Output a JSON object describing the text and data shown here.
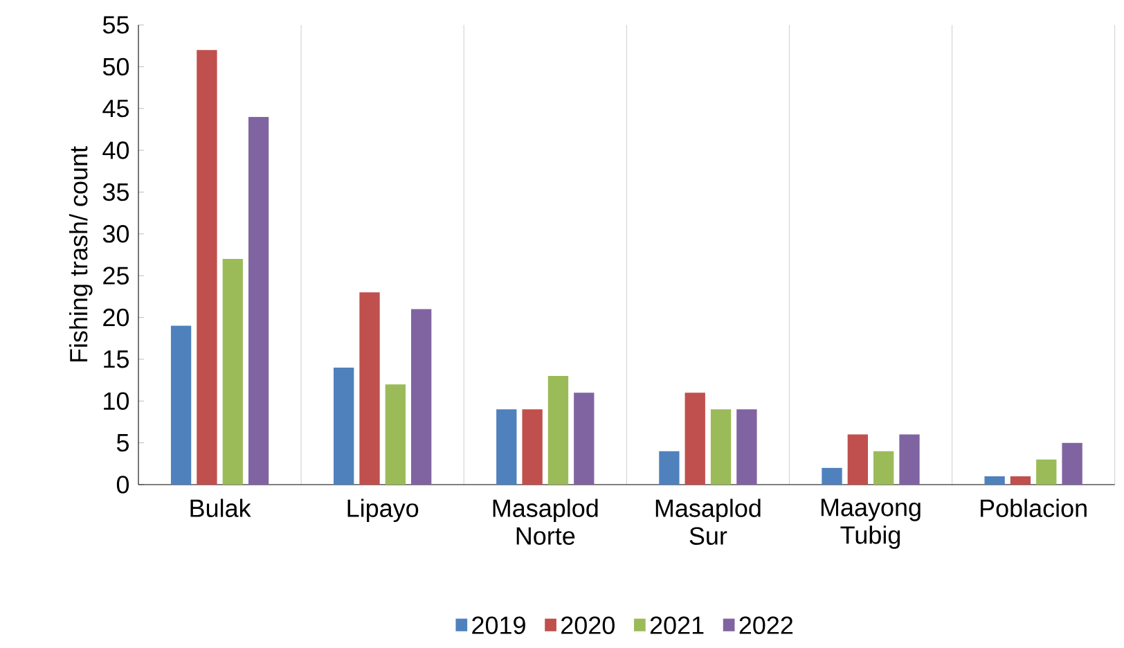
{
  "chart_data": {
    "type": "bar",
    "ylabel": "Fishing trash/ count",
    "categories": [
      "Bulak",
      "Lipayo",
      "Masaplod Norte",
      "Masaplod Sur",
      "Maayong Tubig",
      "Poblacion"
    ],
    "series": [
      {
        "name": "2019",
        "color": "#4f81bd",
        "values": [
          19,
          14,
          9,
          4,
          2,
          1
        ]
      },
      {
        "name": "2020",
        "color": "#c0504d",
        "values": [
          52,
          23,
          9,
          11,
          6,
          1
        ]
      },
      {
        "name": "2021",
        "color": "#9bbb59",
        "values": [
          27,
          12,
          13,
          9,
          4,
          3
        ]
      },
      {
        "name": "2022",
        "color": "#8064a2",
        "values": [
          44,
          21,
          11,
          9,
          6,
          5
        ]
      }
    ],
    "ylim": [
      0,
      55
    ],
    "yticks": [
      0,
      5,
      10,
      15,
      20,
      25,
      30,
      35,
      40,
      45,
      50,
      55
    ],
    "grid": "x",
    "legend": "bottom"
  }
}
